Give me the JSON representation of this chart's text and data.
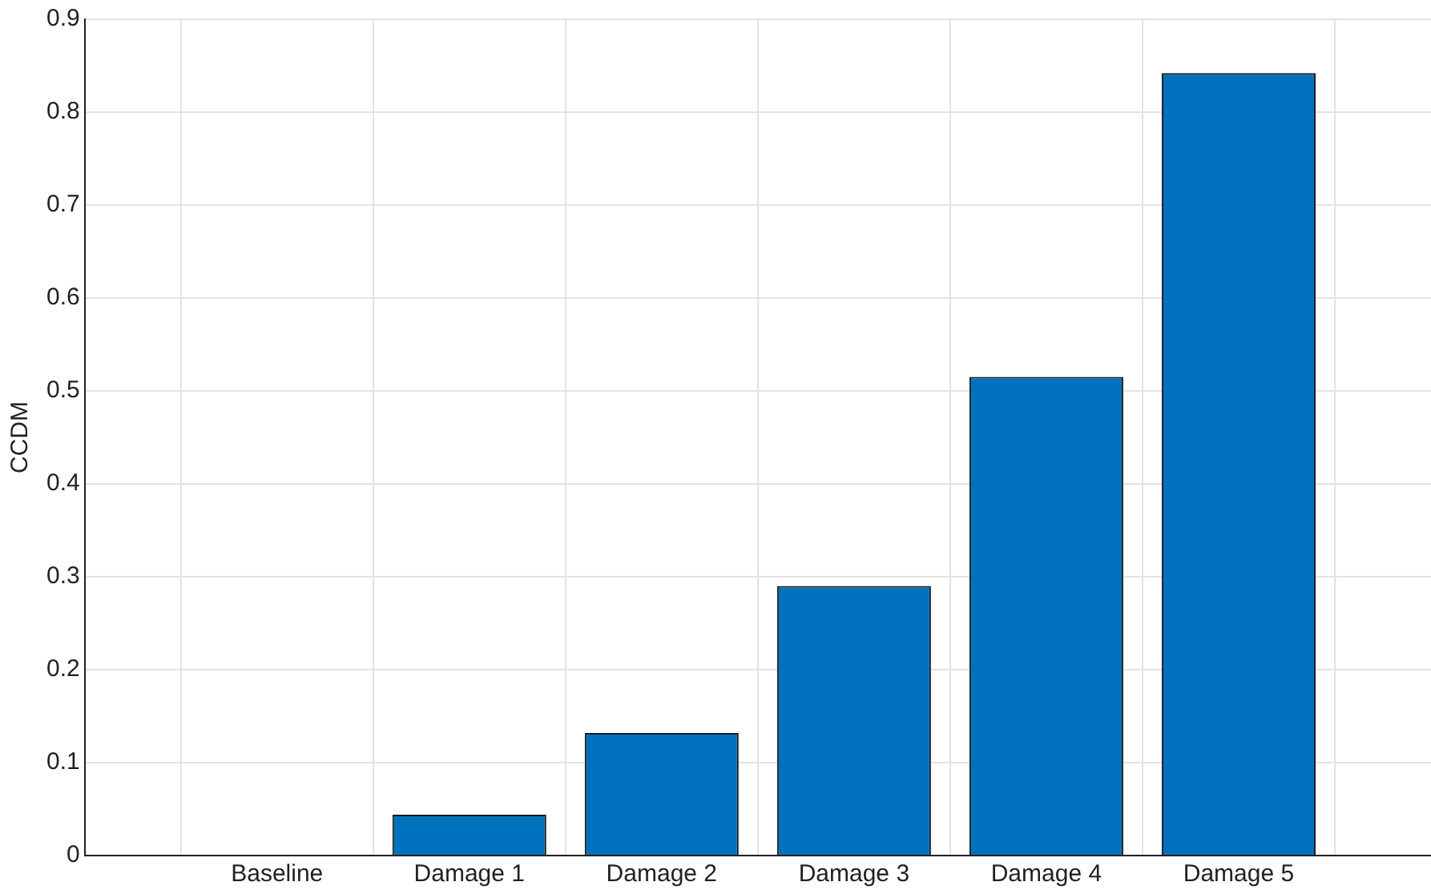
{
  "chart_data": {
    "type": "bar",
    "ylabel": "CCDM",
    "categories": [
      "Baseline",
      "Damage 1",
      "Damage 2",
      "Damage 3",
      "Damage 4",
      "Damage 5"
    ],
    "values": [
      0,
      0.044,
      0.132,
      0.29,
      0.515,
      0.842
    ],
    "color": "#0072bd",
    "ylim": [
      0,
      0.9
    ],
    "yticks": [
      0,
      0.1,
      0.2,
      0.3,
      0.4,
      0.5,
      0.6,
      0.7,
      0.8,
      0.9
    ],
    "grid": true,
    "legend": false
  }
}
